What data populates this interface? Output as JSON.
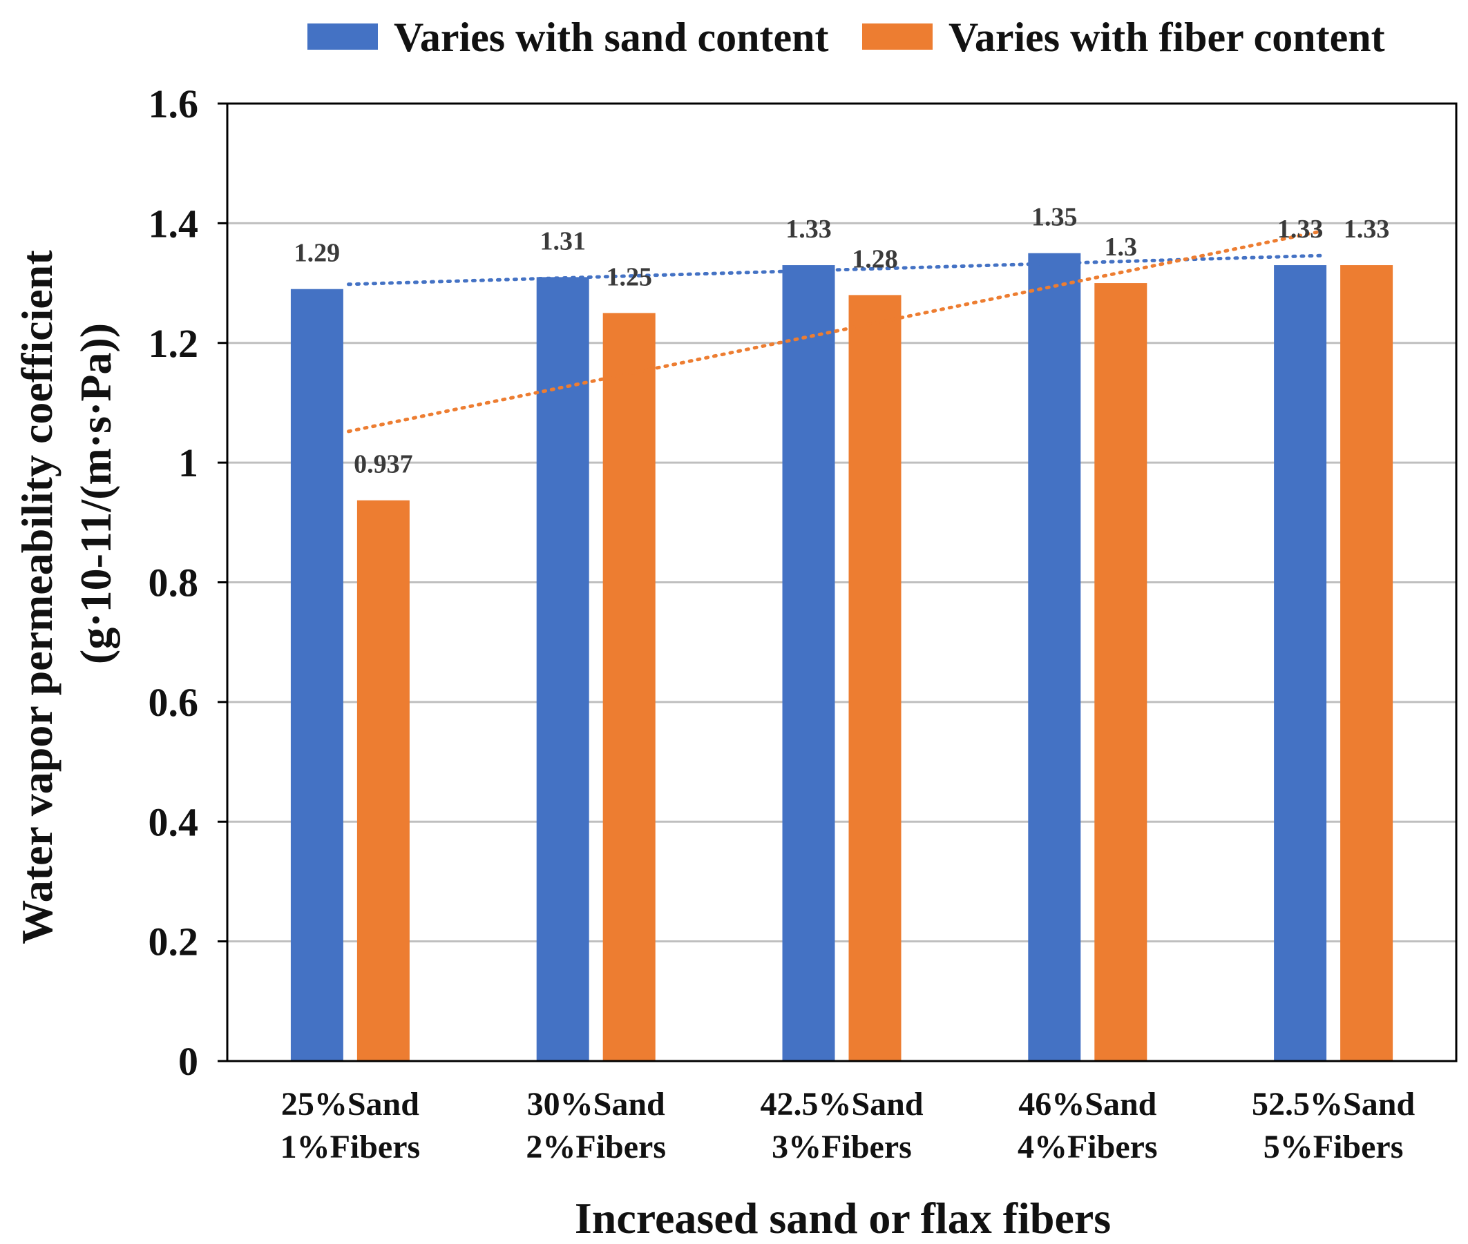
{
  "chart_data": {
    "type": "bar",
    "categories": [
      [
        "25%Sand",
        "1%Fibers"
      ],
      [
        "30%Sand",
        "2%Fibers"
      ],
      [
        "42.5%Sand",
        "3%Fibers"
      ],
      [
        "46%Sand",
        "4%Fibers"
      ],
      [
        "52.5%Sand",
        "5%Fibers"
      ]
    ],
    "series": [
      {
        "name": "Varies with sand content",
        "color": "#4472C4",
        "values": [
          1.29,
          1.31,
          1.33,
          1.35,
          1.33
        ],
        "labels": [
          "1.29",
          "1.31",
          "1.33",
          "1.35",
          "1.33"
        ],
        "trendline": "dotted linear"
      },
      {
        "name": "Varies with fiber content",
        "color": "#ED7D31",
        "values": [
          0.937,
          1.25,
          1.28,
          1.3,
          1.33
        ],
        "labels": [
          "0.937",
          "1.25",
          "1.28",
          "1.3",
          "1.33"
        ],
        "trendline": "dotted linear"
      }
    ],
    "title": "",
    "xlabel": "Increased sand or flax fibers",
    "ylabel_line1": "Water vapor permeability coefficient",
    "ylabel_line2": "(g·10-11/(m·s·Pa))",
    "ylim": [
      0,
      1.6
    ],
    "yticks": [
      0,
      0.2,
      0.4,
      0.6,
      0.8,
      1,
      1.2,
      1.4,
      1.6
    ],
    "ytick_labels": [
      "0",
      "0.2",
      "0.4",
      "0.6",
      "0.8",
      "1",
      "1.2",
      "1.4",
      "1.6"
    ],
    "grid": true,
    "legend_position": "top"
  }
}
